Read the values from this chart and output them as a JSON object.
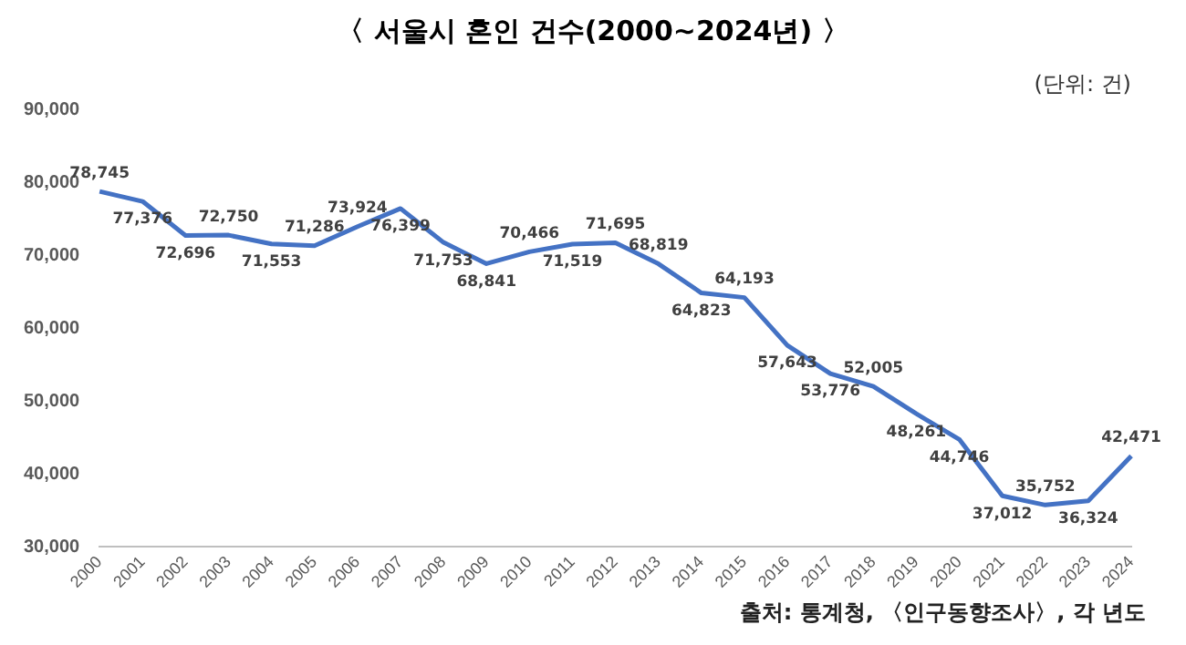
{
  "chart_data": {
    "type": "line",
    "title": "〈 서울시 혼인 건수(2000~2024년) 〉",
    "categories": [
      "2000",
      "2001",
      "2002",
      "2003",
      "2004",
      "2005",
      "2006",
      "2007",
      "2008",
      "2009",
      "2010",
      "2011",
      "2012",
      "2013",
      "2014",
      "2015",
      "2016",
      "2017",
      "2018",
      "2019",
      "2020",
      "2021",
      "2022",
      "2023",
      "2024"
    ],
    "series": [
      {
        "color": "#4472c4",
        "values": [
          78745,
          77376,
          72696,
          72750,
          71553,
          71286,
          73924,
          76399,
          71753,
          68841,
          70466,
          71519,
          71695,
          68819,
          64823,
          64193,
          57643,
          53776,
          52005,
          48261,
          44746,
          37012,
          35752,
          36324,
          42471
        ],
        "value_labels": [
          "78,745",
          "77,376",
          "72,696",
          "72,750",
          "71,553",
          "71,286",
          "73,924",
          "76,399",
          "71,753",
          "68,841",
          "70,466",
          "71,519",
          "71,695",
          "68,819",
          "64,823",
          "64,193",
          "57,643",
          "53,776",
          "52,005",
          "48,261",
          "44,746",
          "37,012",
          "35,752",
          "36,324",
          "42,471"
        ]
      }
    ],
    "ylim": [
      30000,
      90000
    ],
    "yticks": [
      {
        "value": 30000,
        "label": "30,000"
      },
      {
        "value": 40000,
        "label": "40,000"
      },
      {
        "value": 50000,
        "label": "50,000"
      },
      {
        "value": 60000,
        "label": "60,000"
      },
      {
        "value": 70000,
        "label": "70,000"
      },
      {
        "value": 80000,
        "label": "80,000"
      },
      {
        "value": 90000,
        "label": "90,000"
      }
    ],
    "marker": "none",
    "legend": false,
    "grid": false,
    "annotations": [
      "(단위: 건)",
      "출처: 통계청, 〈인구동향조사〉, 각 년도"
    ]
  }
}
